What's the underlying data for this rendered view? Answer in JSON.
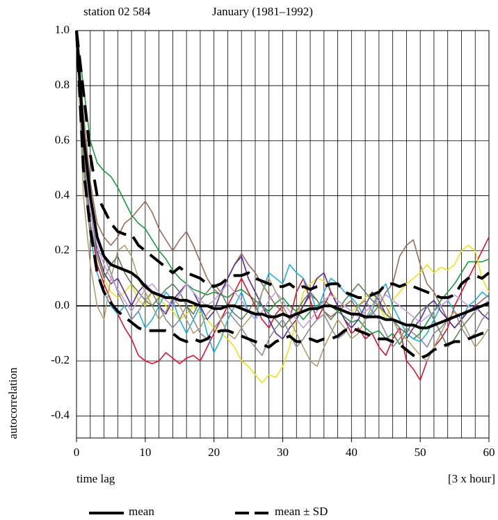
{
  "chart_data": {
    "type": "line",
    "title": "station 02 584",
    "subtitle": "January (1981–1992)",
    "ylabel": "autocorrelation",
    "xlabel": "time lag",
    "xunit": "[3 x hour]",
    "xlim": [
      0,
      60
    ],
    "ylim": [
      -0.48,
      1.0
    ],
    "xticks": [
      0,
      10,
      20,
      30,
      40,
      50,
      60
    ],
    "xgrid": [
      0,
      2,
      4,
      6,
      8,
      10,
      12,
      14,
      16,
      18,
      20,
      22,
      24,
      26,
      28,
      30,
      32,
      34,
      36,
      38,
      40,
      42,
      44,
      46,
      48,
      50,
      52,
      54,
      56,
      58,
      60
    ],
    "yticks": [
      {
        "value": -0.4,
        "label": "-0.4"
      },
      {
        "value": -0.2,
        "label": "-0.2"
      },
      {
        "value": 0,
        "label": "0.0"
      },
      {
        "value": 0.2,
        "label": "0.2"
      },
      {
        "value": 0.4,
        "label": "0.4"
      },
      {
        "value": 0.6,
        "label": "0.6"
      },
      {
        "value": 0.8,
        "label": "0.8"
      },
      {
        "value": 1,
        "label": "1.0"
      }
    ],
    "grid": true,
    "x": [
      0,
      1,
      2,
      3,
      4,
      5,
      6,
      7,
      8,
      9,
      10,
      11,
      12,
      13,
      14,
      15,
      16,
      17,
      18,
      19,
      20,
      21,
      22,
      23,
      24,
      25,
      26,
      27,
      28,
      29,
      30,
      31,
      32,
      33,
      34,
      35,
      36,
      37,
      38,
      39,
      40,
      41,
      42,
      43,
      44,
      45,
      46,
      47,
      48,
      49,
      50,
      51,
      52,
      53,
      54,
      55,
      56,
      57,
      58,
      59,
      60
    ],
    "series": [
      {
        "color": "#1a9a3a",
        "values": [
          1,
          0.8,
          0.6,
          0.52,
          0.49,
          0.47,
          0.43,
          0.38,
          0.33,
          0.3,
          0.28,
          0.24,
          0.2,
          0.17,
          0.13,
          0.1,
          0.08,
          0.06,
          0.05,
          0.04,
          0.05,
          0.04,
          0.03,
          0.05,
          0.06,
          0.04,
          0.02,
          0,
          -0.02,
          0.01,
          0.03,
          0,
          -0.02,
          -0.05,
          -0.02,
          0,
          0.02,
          0,
          -0.02,
          -0.04,
          -0.06,
          -0.05,
          -0.08,
          -0.1,
          -0.09,
          -0.12,
          -0.1,
          -0.14,
          -0.1,
          -0.12,
          -0.1,
          -0.06,
          -0.02,
          0.02,
          0.05,
          0.08,
          0.12,
          0.16,
          0.16,
          0.16,
          0.17
        ]
      },
      {
        "color": "#9a6a5a",
        "values": [
          1,
          0.7,
          0.45,
          0.3,
          0.25,
          0.22,
          0.25,
          0.3,
          0.32,
          0.35,
          0.38,
          0.34,
          0.28,
          0.24,
          0.2,
          0.24,
          0.27,
          0.22,
          0.16,
          0.1,
          0.06,
          0.04,
          0.1,
          0.15,
          0.19,
          0.15,
          0.12,
          0.08,
          0.04,
          0,
          -0.02,
          -0.05,
          -0.03,
          0,
          0.04,
          0.02,
          -0.02,
          -0.04,
          -0.02,
          0,
          0.02,
          -0.02,
          -0.05,
          -0.03,
          0,
          0.05,
          0.08,
          0.18,
          0.22,
          0.24,
          0.15,
          0.08,
          0.05,
          0,
          -0.05,
          -0.08,
          -0.05,
          -0.02,
          0,
          0.02,
          0.04
        ]
      },
      {
        "color": "#e01030",
        "values": [
          1,
          0.55,
          0.3,
          0.15,
          0.08,
          0.02,
          -0.03,
          -0.08,
          -0.12,
          -0.18,
          -0.2,
          -0.21,
          -0.2,
          -0.17,
          -0.19,
          -0.21,
          -0.19,
          -0.18,
          -0.2,
          -0.15,
          -0.1,
          -0.05,
          0,
          0.05,
          0.1,
          0.05,
          0,
          -0.05,
          -0.08,
          -0.03,
          0,
          -0.05,
          0.05,
          0.1,
          0.02,
          -0.05,
          0,
          0.05,
          0,
          -0.05,
          -0.1,
          -0.08,
          -0.12,
          -0.1,
          -0.15,
          -0.18,
          -0.12,
          -0.08,
          -0.2,
          -0.23,
          -0.27,
          -0.2,
          -0.15,
          -0.12,
          -0.08,
          0,
          0.05,
          0.1,
          0.15,
          0.2,
          0.25
        ]
      },
      {
        "color": "#f0e020",
        "values": [
          1,
          0.6,
          0.35,
          0.2,
          0.1,
          0.05,
          0.03,
          0.05,
          0.08,
          0.02,
          0,
          0.05,
          0.03,
          0,
          -0.02,
          -0.05,
          -0.03,
          0,
          -0.03,
          -0.05,
          -0.08,
          -0.1,
          -0.12,
          -0.15,
          -0.2,
          -0.22,
          -0.25,
          -0.28,
          -0.25,
          -0.26,
          -0.22,
          -0.15,
          -0.05,
          0.05,
          0.08,
          0.1,
          0.09,
          0.05,
          0.02,
          0,
          -0.02,
          0,
          0.03,
          0.05,
          0,
          -0.05,
          0.02,
          0.05,
          0.08,
          0.1,
          0.12,
          0.15,
          0.12,
          0.14,
          0.13,
          0.15,
          0.2,
          0.22,
          0.2,
          0.1,
          0.05
        ]
      },
      {
        "color": "#20b0e0",
        "values": [
          1,
          0.5,
          0.25,
          0.12,
          0.05,
          0,
          -0.03,
          0,
          -0.05,
          -0.02,
          -0.08,
          -0.05,
          0,
          0.05,
          0.02,
          -0.05,
          -0.1,
          -0.05,
          0,
          -0.1,
          -0.17,
          -0.12,
          -0.05,
          0,
          0.05,
          -0.02,
          -0.05,
          0.05,
          0.12,
          0.1,
          0.08,
          0.15,
          0.12,
          0.1,
          0.05,
          -0.02,
          0.05,
          0.1,
          0.08,
          0.05,
          0.03,
          0,
          -0.05,
          -0.02,
          0.05,
          0.08,
          0,
          -0.05,
          -0.1,
          -0.12,
          -0.13,
          -0.1,
          -0.05,
          0,
          0.02,
          -0.02,
          -0.05,
          0,
          0.02,
          0.05,
          0.03
        ]
      },
      {
        "color": "#5a2a9a",
        "values": [
          1,
          0.6,
          0.35,
          0.2,
          0.12,
          0.08,
          0.1,
          0.05,
          0,
          0.05,
          0.08,
          0.05,
          0,
          -0.03,
          0.02,
          0.05,
          0.08,
          0.05,
          0,
          -0.05,
          -0.02,
          0.05,
          0.1,
          0.15,
          0.18,
          0.1,
          0.05,
          0,
          -0.05,
          -0.1,
          -0.12,
          -0.08,
          -0.05,
          0,
          0.05,
          0.1,
          0.12,
          0.05,
          0,
          -0.05,
          -0.08,
          -0.05,
          0,
          0.05,
          0.02,
          -0.03,
          -0.05,
          -0.1,
          -0.12,
          -0.08,
          -0.05,
          0,
          0.02,
          -0.02,
          -0.05,
          -0.08,
          -0.05,
          -0.02,
          0,
          -0.03,
          -0.05
        ]
      },
      {
        "color": "#8a8a9a",
        "values": [
          1,
          0.5,
          0.25,
          0.2,
          0.18,
          0.12,
          0.05,
          0,
          -0.05,
          -0.02,
          0.02,
          0.05,
          0,
          -0.05,
          -0.08,
          -0.05,
          0,
          -0.05,
          -0.1,
          -0.12,
          -0.08,
          -0.05,
          -0.02,
          -0.05,
          -0.08,
          -0.12,
          -0.15,
          -0.18,
          -0.12,
          -0.08,
          -0.05,
          -0.1,
          -0.15,
          -0.12,
          -0.08,
          -0.05,
          -0.03,
          -0.08,
          -0.12,
          -0.1,
          -0.05,
          0,
          0.02,
          -0.02,
          -0.05,
          -0.1,
          -0.15,
          -0.12,
          -0.08,
          -0.1,
          -0.12,
          -0.15,
          -0.1,
          -0.08,
          -0.05,
          -0.02,
          -0.08,
          -0.12,
          -0.1,
          -0.05,
          -0.02
        ]
      },
      {
        "color": "#b0a070",
        "values": [
          1,
          0.4,
          0.15,
          0,
          -0.05,
          0.1,
          0.2,
          0.22,
          0.18,
          0.1,
          0.05,
          0,
          -0.05,
          -0.02,
          0.03,
          0,
          -0.05,
          -0.1,
          -0.08,
          -0.03,
          0,
          -0.05,
          -0.1,
          -0.12,
          -0.08,
          -0.05,
          -0.02,
          0.05,
          0.1,
          0.05,
          0,
          -0.05,
          -0.1,
          -0.15,
          -0.2,
          -0.22,
          -0.15,
          -0.1,
          -0.05,
          -0.08,
          -0.12,
          -0.1,
          -0.05,
          0,
          0.05,
          0,
          -0.05,
          -0.1,
          -0.12,
          -0.15,
          -0.18,
          -0.2,
          -0.15,
          -0.1,
          -0.05,
          -0.02,
          -0.05,
          -0.1,
          -0.15,
          -0.12,
          -0.08
        ]
      },
      {
        "color": "#608060",
        "values": [
          1,
          0.55,
          0.3,
          0.18,
          0.1,
          0.15,
          0.18,
          0.12,
          0.08,
          0.05,
          0.02,
          0,
          0.03,
          0.06,
          0.08,
          0.05,
          0,
          -0.03,
          0.02,
          0.05,
          0.08,
          0.05,
          0,
          -0.03,
          -0.05,
          -0.02,
          0.02,
          0,
          -0.03,
          -0.05,
          -0.08,
          -0.05,
          -0.02,
          0.02,
          0.05,
          0.02,
          -0.02,
          -0.05,
          -0.02,
          0.02,
          0.05,
          0.08,
          0.05,
          0.02,
          0,
          -0.03,
          -0.05,
          -0.08,
          -0.1,
          -0.05,
          -0.02,
          0,
          -0.05,
          -0.1,
          -0.15,
          -0.12,
          -0.08,
          -0.05,
          -0.02,
          0,
          0.02
        ]
      },
      {
        "color": "#c0a0e0",
        "values": [
          1,
          0.6,
          0.35,
          0.22,
          0.15,
          0.1,
          0.06,
          0.02,
          -0.02,
          0.02,
          0.06,
          0.08,
          0.05,
          0.02,
          0,
          0.04,
          0.08,
          0.05,
          0.02,
          0,
          0.02,
          0.05,
          0.08,
          0.05,
          0.02,
          -0.02,
          -0.05,
          -0.02,
          0.02,
          0.05,
          0.02,
          -0.02,
          -0.05,
          -0.08,
          -0.05,
          -0.02,
          0.02,
          0.04,
          0.02,
          0,
          -0.02,
          -0.04,
          -0.02,
          0,
          0.02,
          0.04,
          0.02,
          0,
          -0.02,
          -0.04,
          -0.06,
          -0.04,
          -0.02,
          0,
          0.02,
          0.04,
          0.02,
          0,
          -0.02,
          0,
          0.02
        ]
      },
      {
        "name": "mean",
        "color": "#000000",
        "style": "solid",
        "values": [
          1,
          0.62,
          0.4,
          0.25,
          0.18,
          0.15,
          0.14,
          0.13,
          0.12,
          0.1,
          0.07,
          0.05,
          0.04,
          0.03,
          0.03,
          0.02,
          0.02,
          0.01,
          0,
          0,
          -0.01,
          -0.01,
          0,
          0,
          -0.01,
          -0.02,
          -0.03,
          -0.03,
          -0.04,
          -0.04,
          -0.03,
          -0.04,
          -0.03,
          -0.02,
          -0.01,
          -0.01,
          0,
          0,
          -0.01,
          -0.02,
          -0.03,
          -0.03,
          -0.04,
          -0.04,
          -0.04,
          -0.05,
          -0.05,
          -0.06,
          -0.07,
          -0.07,
          -0.08,
          -0.08,
          -0.07,
          -0.06,
          -0.05,
          -0.04,
          -0.03,
          -0.02,
          -0.01,
          0,
          0.01
        ]
      },
      {
        "name": "mean  ± SD",
        "color": "#000000",
        "style": "dashed",
        "values": [
          1,
          0.78,
          0.55,
          0.4,
          0.35,
          0.3,
          0.27,
          0.26,
          0.26,
          0.22,
          0.2,
          0.18,
          0.16,
          0.14,
          0.12,
          0.14,
          0.12,
          0.11,
          0.1,
          0.08,
          0.07,
          0.08,
          0.1,
          0.11,
          0.11,
          0.12,
          0.1,
          0.09,
          0.08,
          0.07,
          0.07,
          0.08,
          0.06,
          0.07,
          0.06,
          0.07,
          0.07,
          0.08,
          0.08,
          0.05,
          0.04,
          0.03,
          0.03,
          0.04,
          0.05,
          0.08,
          0.08,
          0.07,
          0.08,
          0.07,
          0.06,
          0.05,
          0.04,
          0.03,
          0.03,
          0.04,
          0.08,
          0.1,
          0.11,
          0.1,
          0.12
        ]
      },
      {
        "color": "#000000",
        "style": "dashed",
        "values": [
          1,
          0.5,
          0.28,
          0.12,
          0.05,
          0.01,
          -0.02,
          -0.04,
          -0.06,
          -0.08,
          -0.09,
          -0.09,
          -0.09,
          -0.09,
          -0.1,
          -0.12,
          -0.13,
          -0.12,
          -0.13,
          -0.12,
          -0.1,
          -0.09,
          -0.09,
          -0.1,
          -0.11,
          -0.12,
          -0.13,
          -0.14,
          -0.15,
          -0.13,
          -0.12,
          -0.11,
          -0.13,
          -0.13,
          -0.12,
          -0.13,
          -0.12,
          -0.12,
          -0.11,
          -0.09,
          -0.08,
          -0.09,
          -0.1,
          -0.11,
          -0.12,
          -0.12,
          -0.13,
          -0.14,
          -0.16,
          -0.18,
          -0.19,
          -0.18,
          -0.16,
          -0.15,
          -0.14,
          -0.13,
          -0.13,
          -0.12,
          -0.11,
          -0.1,
          -0.1
        ]
      }
    ]
  }
}
